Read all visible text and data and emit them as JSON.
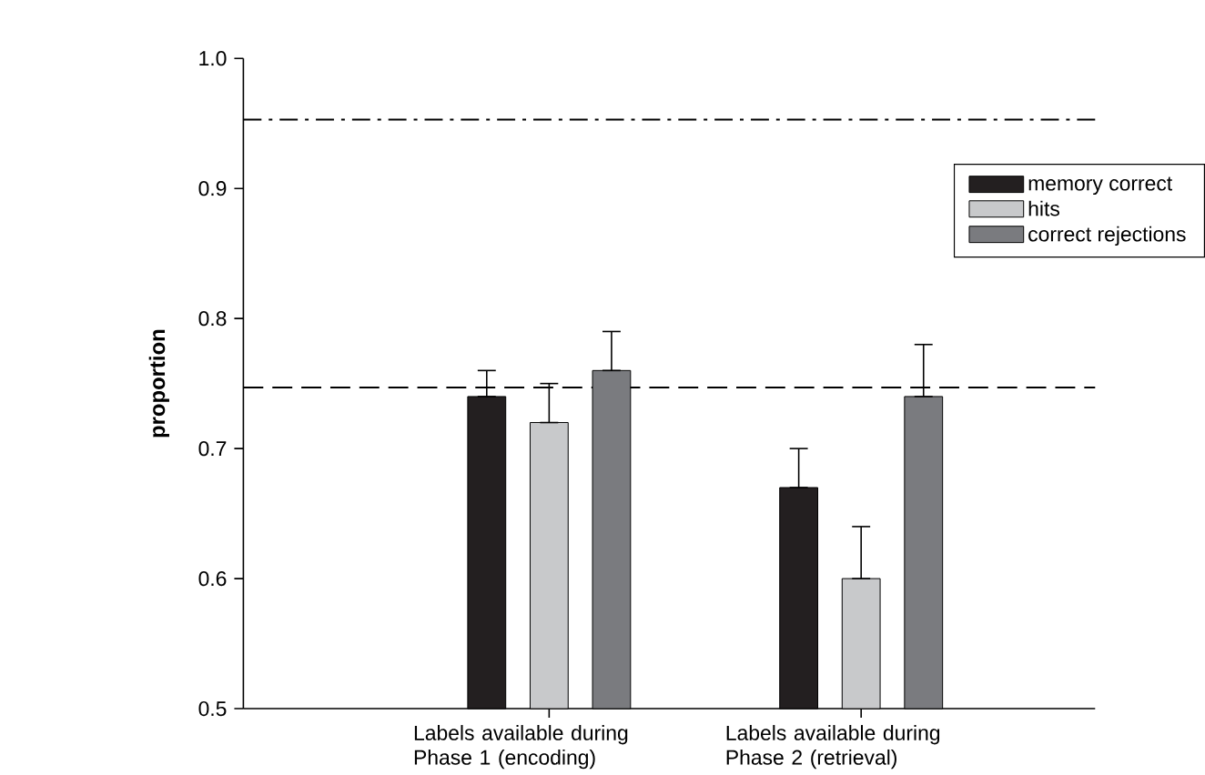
{
  "chart_data": {
    "type": "bar",
    "ylabel": "proportion",
    "categories": [
      "Labels available during Phase 1 (encoding)",
      "Labels available during Phase 2 (retrieval)"
    ],
    "series": [
      {
        "name": "memory correct",
        "color": "#231f20",
        "values": [
          0.74,
          0.67
        ],
        "errors": [
          [
            0.74,
            0.76
          ],
          [
            0.67,
            0.7
          ]
        ]
      },
      {
        "name": "hits",
        "color": "#c8c9cb",
        "values": [
          0.72,
          0.6
        ],
        "errors": [
          [
            0.72,
            0.75
          ],
          [
            0.6,
            0.64
          ]
        ]
      },
      {
        "name": "correct rejections",
        "color": "#7a7b7f",
        "values": [
          0.76,
          0.74
        ],
        "errors": [
          [
            0.76,
            0.79
          ],
          [
            0.74,
            0.78
          ]
        ]
      }
    ],
    "ylim": [
      0.5,
      1.0
    ],
    "yticks": [
      0.5,
      0.6,
      0.7,
      0.8,
      0.9,
      {
        "value": 1.0,
        "label": "1.0"
      }
    ],
    "ref_lines": [
      {
        "axis": "y",
        "value": 0.953,
        "color": "#000000",
        "line_style": "dashdot"
      },
      {
        "axis": "y",
        "value": 0.747,
        "color": "#000000",
        "line_style": "dashed"
      }
    ],
    "legend": "right",
    "grid": false
  }
}
